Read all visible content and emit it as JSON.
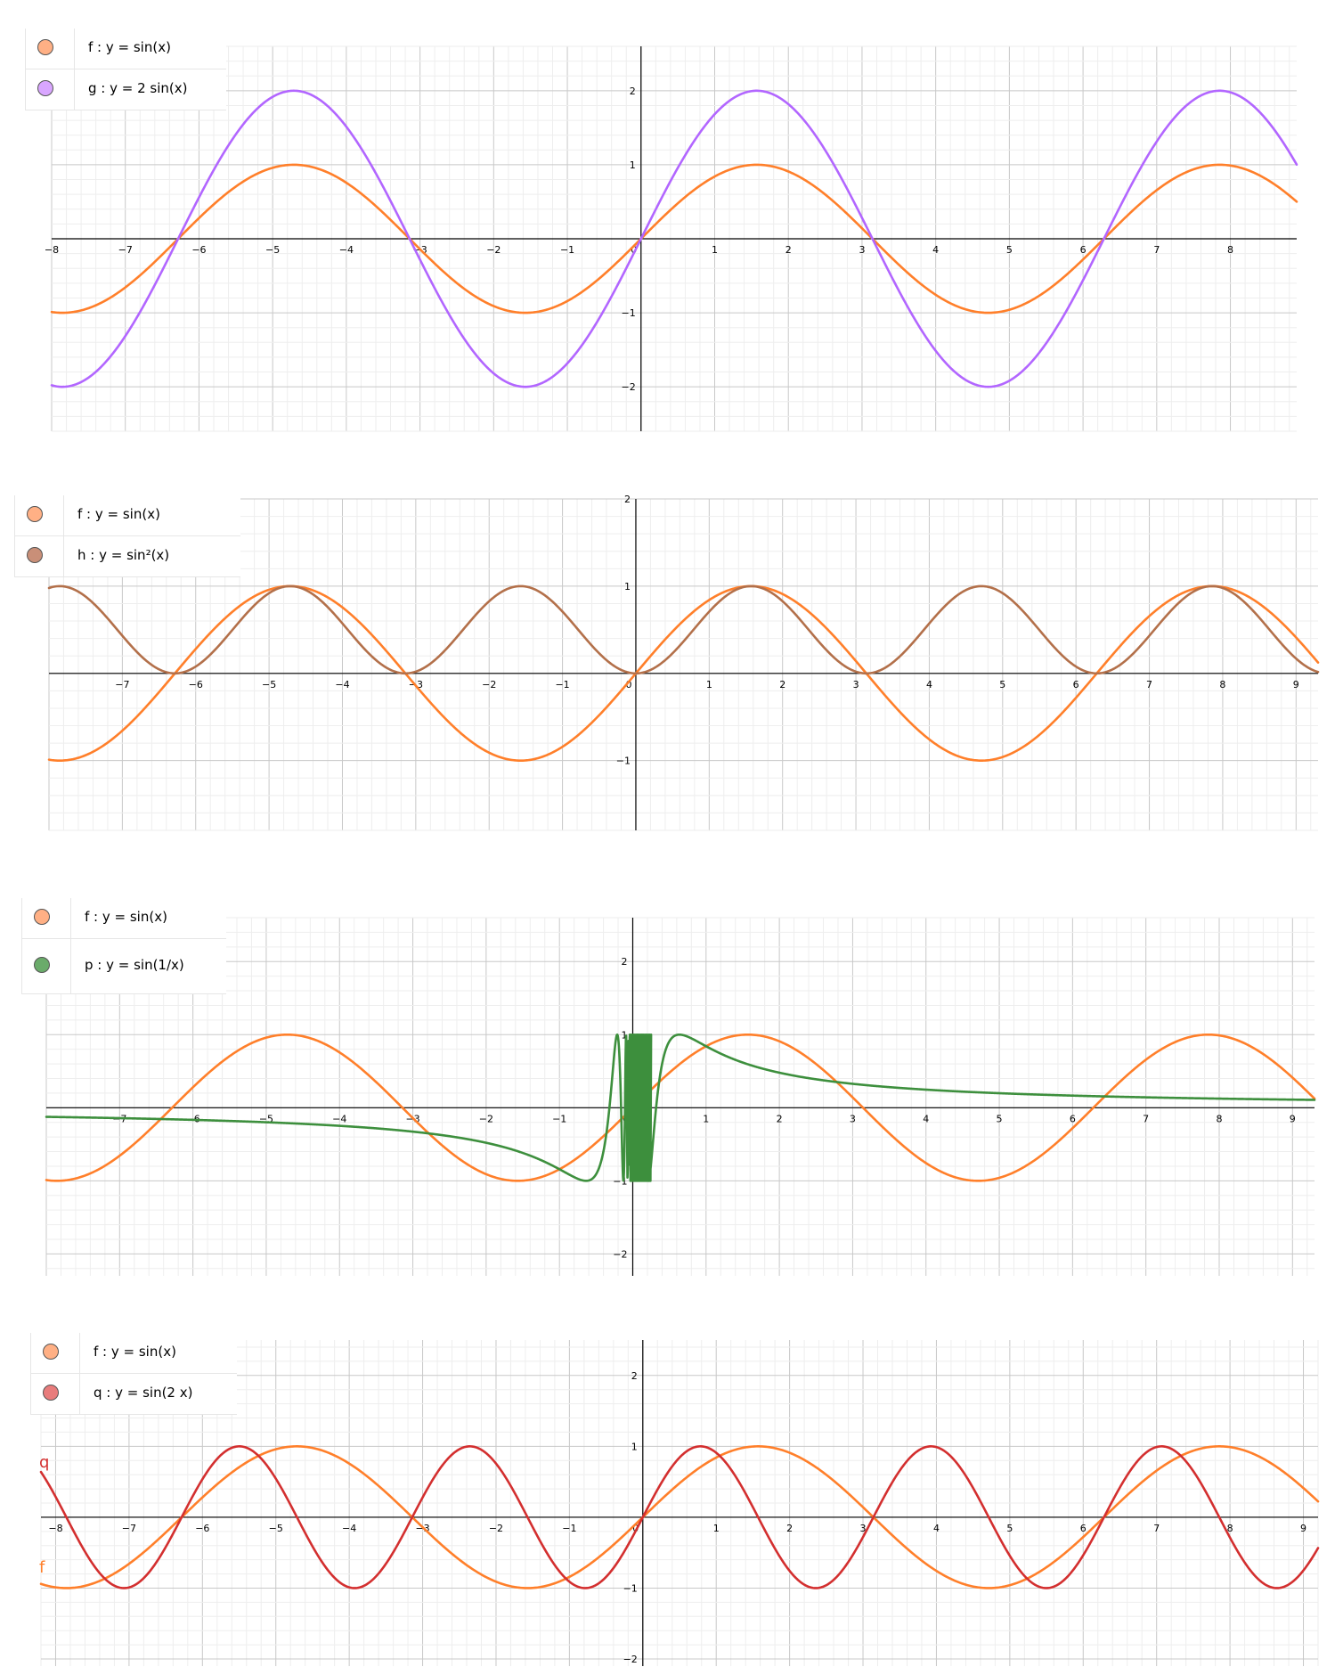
{
  "chart_data": [
    {
      "type": "line",
      "xlim": [
        -8,
        8.9
      ],
      "ylim": [
        -2.6,
        2.6
      ],
      "x_ticks": [
        "−8",
        "−7",
        "−6",
        "−5",
        "−4",
        "−3",
        "−2",
        "−1",
        "0",
        "1",
        "2",
        "3",
        "4",
        "5",
        "6",
        "7",
        "8"
      ],
      "y_ticks": [
        "2",
        "1",
        "−1",
        "−2"
      ],
      "grid": true,
      "legend_position": "top-left",
      "series": [
        {
          "name": "f : y = sin(x)",
          "function": "sin(x)",
          "color": "#ff7f2a"
        },
        {
          "name": "g : y = 2 sin(x)",
          "function": "2 sin(x)",
          "color": "#b266ff"
        }
      ]
    },
    {
      "type": "line",
      "xlim": [
        -8,
        9.3
      ],
      "ylim": [
        -1.8,
        2.0
      ],
      "x_ticks": [
        "−7",
        "−6",
        "−5",
        "−4",
        "−3",
        "−2",
        "−1",
        "0",
        "1",
        "2",
        "3",
        "4",
        "5",
        "6",
        "7",
        "8",
        "9"
      ],
      "y_ticks": [
        "2",
        "1",
        "−1"
      ],
      "grid": true,
      "legend_position": "top-left",
      "series": [
        {
          "name": "f : y = sin(x)",
          "function": "sin(x)",
          "color": "#ff7f2a"
        },
        {
          "name": "h : y = sin²(x)",
          "function": "sin²(x)",
          "color": "#b3704a"
        }
      ]
    },
    {
      "type": "line",
      "xlim": [
        -8,
        9.3
      ],
      "ylim": [
        -2.3,
        2.6
      ],
      "x_ticks": [
        "−7",
        "−6",
        "−5",
        "−4",
        "−3",
        "−2",
        "−1",
        "0",
        "1",
        "2",
        "3",
        "4",
        "5",
        "6",
        "7",
        "8",
        "9"
      ],
      "y_ticks": [
        "2",
        "1",
        "−1",
        "−2"
      ],
      "grid": true,
      "legend_position": "top-left",
      "series": [
        {
          "name": "f : y = sin(x)",
          "function": "sin(x)",
          "color": "#ff7f2a"
        },
        {
          "name": "p : y = sin(1/x)",
          "function": "sin(1/x)",
          "color": "#3d8f3d"
        }
      ]
    },
    {
      "type": "line",
      "xlim": [
        -8.2,
        9.2
      ],
      "ylim": [
        -2.1,
        2.5
      ],
      "x_ticks": [
        "−8",
        "−7",
        "−6",
        "−5",
        "−4",
        "−3",
        "−2",
        "−1",
        "0",
        "1",
        "2",
        "3",
        "4",
        "5",
        "6",
        "7",
        "8",
        "9"
      ],
      "y_ticks": [
        "2",
        "1",
        "−1",
        "−2"
      ],
      "grid": true,
      "legend_position": "top-left",
      "edge_labels": [
        "q",
        "f"
      ],
      "series": [
        {
          "name": "f : y = sin(x)",
          "function": "sin(x)",
          "color": "#ff7f2a"
        },
        {
          "name": "q : y = sin(2 x)",
          "function": "sin(2x)",
          "color": "#d32f2f"
        }
      ]
    }
  ],
  "legends": [
    [
      {
        "label": "f : y = sin(x)",
        "color": "#ffb085"
      },
      {
        "label": "g : y = 2 sin(x)",
        "color": "#d9a6ff"
      }
    ],
    [
      {
        "label": "f : y = sin(x)",
        "color": "#ffb085"
      },
      {
        "label": "h : y = sin²(x)",
        "color": "#c98f78"
      }
    ],
    [
      {
        "label": "f : y = sin(x)",
        "color": "#ffb085"
      },
      {
        "label": "p : y = sin(1/x)",
        "color": "#6aab6a"
      }
    ],
    [
      {
        "label": "f : y = sin(x)",
        "color": "#ffb085"
      },
      {
        "label": "q : y = sin(2 x)",
        "color": "#e87c7c"
      }
    ]
  ]
}
